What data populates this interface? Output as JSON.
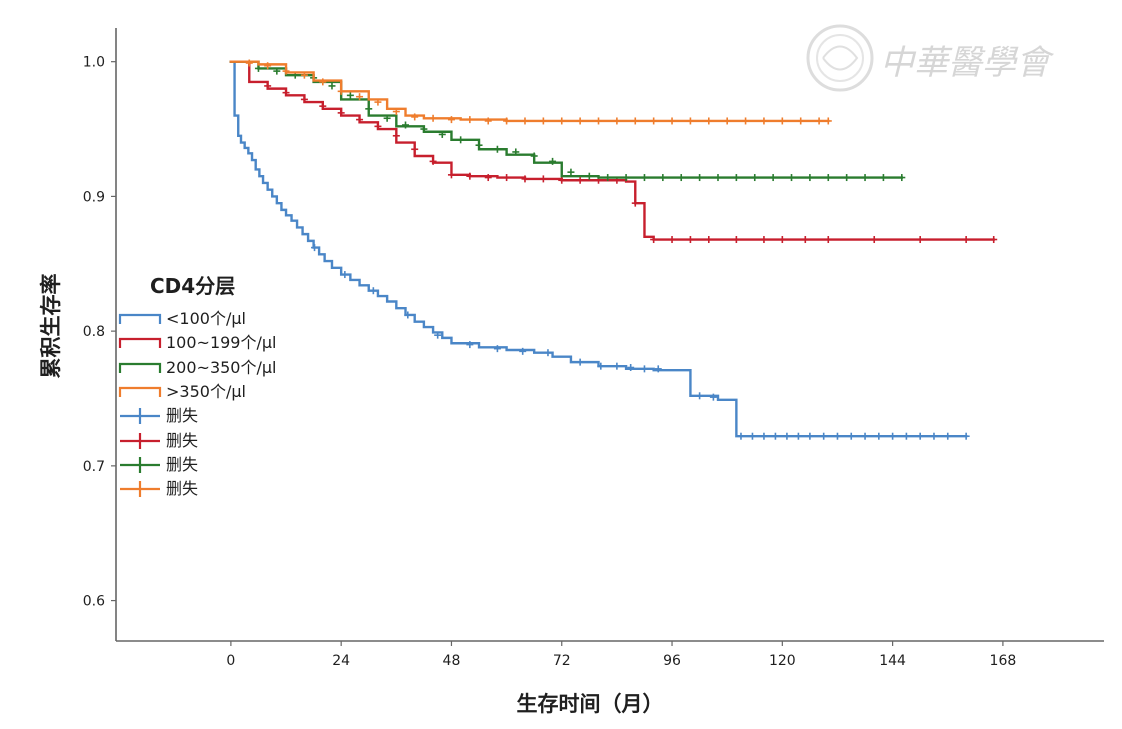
{
  "watermark": {
    "text": "中華醫學會"
  },
  "chart_data": {
    "type": "line",
    "xlabel": "生存时间（月）",
    "ylabel": "累积生存率",
    "xlim": [
      -25,
      190
    ],
    "ylim": [
      0.57,
      1.025
    ],
    "x_ticks": [
      0,
      24,
      48,
      72,
      96,
      120,
      144,
      168
    ],
    "x_tick_labels": [
      "0",
      "24",
      "48",
      "72",
      "96",
      "120",
      "144",
      "168"
    ],
    "y_ticks": [
      0.6,
      0.7,
      0.8,
      0.9,
      1.0
    ],
    "y_tick_labels": [
      "0.6",
      "0.7",
      "0.8",
      "0.9",
      "1.0"
    ],
    "grid": false,
    "legend": {
      "title": "CD4分层",
      "placement": "left",
      "line_items": [
        {
          "label": "<100个/μl",
          "color": "#4a86c7"
        },
        {
          "label": "100~199个/μl",
          "color": "#c71f2d"
        },
        {
          "label": "200~350个/μl",
          "color": "#2a7c2f"
        },
        {
          "label": ">350个/μl",
          "color": "#ef7d2d"
        }
      ],
      "censor_items": [
        {
          "label": "删失",
          "color": "#4a86c7"
        },
        {
          "label": "删失",
          "color": "#c71f2d"
        },
        {
          "label": "删失",
          "color": "#2a7c2f"
        },
        {
          "label": "删失",
          "color": "#ef7d2d"
        }
      ]
    },
    "series": [
      {
        "name": "<100个/μl",
        "color": "#4a86c7",
        "x": [
          0,
          0.8,
          1.6,
          2.2,
          3.0,
          3.8,
          4.6,
          5.4,
          6.2,
          7.0,
          8.0,
          9.0,
          10.0,
          11.0,
          12.0,
          13.2,
          14.4,
          15.6,
          16.8,
          18.0,
          19.2,
          20.4,
          22.0,
          24.0,
          26.0,
          28.0,
          30.0,
          32.0,
          34.0,
          36.0,
          38.0,
          40.0,
          42.0,
          44.0,
          46.0,
          48.0,
          54.0,
          60.0,
          66.0,
          70.0,
          74.0,
          80.0,
          86.0,
          92.0,
          100.0,
          106.0,
          110.0,
          120.0,
          130.0,
          140.0,
          150.0,
          160.0
        ],
        "y": [
          1.0,
          0.96,
          0.945,
          0.94,
          0.936,
          0.932,
          0.927,
          0.92,
          0.915,
          0.91,
          0.905,
          0.9,
          0.895,
          0.89,
          0.886,
          0.882,
          0.877,
          0.872,
          0.867,
          0.862,
          0.857,
          0.852,
          0.847,
          0.842,
          0.838,
          0.834,
          0.83,
          0.826,
          0.822,
          0.817,
          0.812,
          0.807,
          0.803,
          0.799,
          0.795,
          0.791,
          0.788,
          0.786,
          0.784,
          0.781,
          0.777,
          0.774,
          0.772,
          0.771,
          0.752,
          0.749,
          0.722,
          0.722,
          0.722,
          0.722,
          0.722,
          0.722
        ],
        "censor_x": [
          18.2,
          24.8,
          31.0,
          38.5,
          45.0,
          52.0,
          58.0,
          63.5,
          69.0,
          76.0,
          80.5,
          84.0,
          87.0,
          90.0,
          93.0,
          102.0,
          105.0,
          111.0,
          113.5,
          116.0,
          118.5,
          121.0,
          123.5,
          126.0,
          129.0,
          132.0,
          135.0,
          138.0,
          141.0,
          144.0,
          147.0,
          150.0,
          153.0,
          156.0,
          160.0
        ],
        "censor_y": [
          0.862,
          0.842,
          0.83,
          0.812,
          0.797,
          0.79,
          0.787,
          0.785,
          0.784,
          0.777,
          0.774,
          0.774,
          0.773,
          0.772,
          0.772,
          0.752,
          0.751,
          0.722,
          0.722,
          0.722,
          0.722,
          0.722,
          0.722,
          0.722,
          0.722,
          0.722,
          0.722,
          0.722,
          0.722,
          0.722,
          0.722,
          0.722,
          0.722,
          0.722,
          0.722
        ]
      },
      {
        "name": "100~199个/μl",
        "color": "#c71f2d",
        "x": [
          0,
          4.0,
          8.0,
          12.0,
          16.0,
          20.0,
          24.0,
          28.0,
          32.0,
          36.0,
          40.0,
          44.0,
          48.0,
          52.0,
          58.0,
          64.0,
          72.0,
          80.0,
          86.0,
          88.0,
          90.0,
          92.0,
          96.0,
          104.0,
          112.0,
          120.0,
          130.0,
          140.0,
          150.0,
          160.0,
          166.0
        ],
        "y": [
          1.0,
          0.985,
          0.98,
          0.975,
          0.97,
          0.965,
          0.96,
          0.955,
          0.95,
          0.94,
          0.93,
          0.925,
          0.916,
          0.915,
          0.914,
          0.913,
          0.912,
          0.912,
          0.911,
          0.895,
          0.87,
          0.868,
          0.868,
          0.868,
          0.868,
          0.868,
          0.868,
          0.868,
          0.868,
          0.868,
          0.868
        ],
        "censor_x": [
          8.0,
          12.0,
          16.0,
          20.0,
          24.0,
          28.0,
          32.0,
          36.0,
          40.0,
          44.0,
          48.0,
          52.0,
          56.0,
          60.0,
          64.0,
          68.0,
          72.0,
          76.0,
          80.0,
          84.0,
          88.0,
          92.0,
          96.0,
          100.0,
          104.0,
          110.0,
          116.0,
          120.0,
          125.0,
          130.0,
          140.0,
          150.0,
          160.0,
          166.0
        ],
        "censor_y": [
          0.982,
          0.977,
          0.972,
          0.967,
          0.962,
          0.957,
          0.952,
          0.945,
          0.935,
          0.926,
          0.916,
          0.915,
          0.914,
          0.914,
          0.913,
          0.913,
          0.912,
          0.912,
          0.912,
          0.912,
          0.895,
          0.868,
          0.868,
          0.868,
          0.868,
          0.868,
          0.868,
          0.868,
          0.868,
          0.868,
          0.868,
          0.868,
          0.868,
          0.868
        ]
      },
      {
        "name": "200~350个/μl",
        "color": "#2a7c2f",
        "x": [
          0,
          6.0,
          12.0,
          18.0,
          24.0,
          30.0,
          36.0,
          42.0,
          48.0,
          54.0,
          60.0,
          66.0,
          72.0,
          80.0,
          90.0,
          100.0,
          110.0,
          120.0,
          130.0,
          140.0,
          146.0
        ],
        "y": [
          1.0,
          0.995,
          0.99,
          0.985,
          0.972,
          0.96,
          0.952,
          0.948,
          0.942,
          0.935,
          0.931,
          0.925,
          0.915,
          0.914,
          0.914,
          0.914,
          0.914,
          0.914,
          0.914,
          0.914,
          0.914
        ],
        "censor_x": [
          6.0,
          10.0,
          14.0,
          18.0,
          22.0,
          26.0,
          30.0,
          34.0,
          38.0,
          42.0,
          46.0,
          50.0,
          54.0,
          58.0,
          62.0,
          66.0,
          70.0,
          74.0,
          78.0,
          82.0,
          86.0,
          90.0,
          94.0,
          98.0,
          102.0,
          106.0,
          110.0,
          114.0,
          118.0,
          122.0,
          126.0,
          130.0,
          134.0,
          138.0,
          142.0,
          146.0
        ],
        "censor_y": [
          0.995,
          0.993,
          0.99,
          0.988,
          0.982,
          0.975,
          0.965,
          0.958,
          0.953,
          0.95,
          0.946,
          0.942,
          0.938,
          0.935,
          0.933,
          0.93,
          0.926,
          0.918,
          0.915,
          0.914,
          0.914,
          0.914,
          0.914,
          0.914,
          0.914,
          0.914,
          0.914,
          0.914,
          0.914,
          0.914,
          0.914,
          0.914,
          0.914,
          0.914,
          0.914,
          0.914
        ]
      },
      {
        "name": ">350个/μl",
        "color": "#ef7d2d",
        "x": [
          0,
          6.0,
          12.0,
          18.0,
          24.0,
          30.0,
          34.0,
          38.0,
          42.0,
          50.0,
          60.0,
          70.0,
          80.0,
          90.0,
          100.0,
          110.0,
          120.0,
          130.0
        ],
        "y": [
          1.0,
          0.998,
          0.992,
          0.986,
          0.978,
          0.972,
          0.965,
          0.96,
          0.958,
          0.957,
          0.956,
          0.956,
          0.956,
          0.956,
          0.956,
          0.956,
          0.956,
          0.956
        ],
        "censor_x": [
          4.0,
          8.0,
          12.0,
          16.0,
          20.0,
          24.0,
          28.0,
          32.0,
          36.0,
          40.0,
          44.0,
          48.0,
          52.0,
          56.0,
          60.0,
          64.0,
          68.0,
          72.0,
          76.0,
          80.0,
          84.0,
          88.0,
          92.0,
          96.0,
          100.0,
          104.0,
          108.0,
          112.0,
          116.0,
          120.0,
          124.0,
          128.0,
          130.0
        ],
        "censor_y": [
          0.999,
          0.997,
          0.993,
          0.99,
          0.985,
          0.978,
          0.974,
          0.97,
          0.963,
          0.959,
          0.958,
          0.957,
          0.957,
          0.956,
          0.956,
          0.956,
          0.956,
          0.956,
          0.956,
          0.956,
          0.956,
          0.956,
          0.956,
          0.956,
          0.956,
          0.956,
          0.956,
          0.956,
          0.956,
          0.956,
          0.956,
          0.956,
          0.956
        ]
      }
    ]
  }
}
